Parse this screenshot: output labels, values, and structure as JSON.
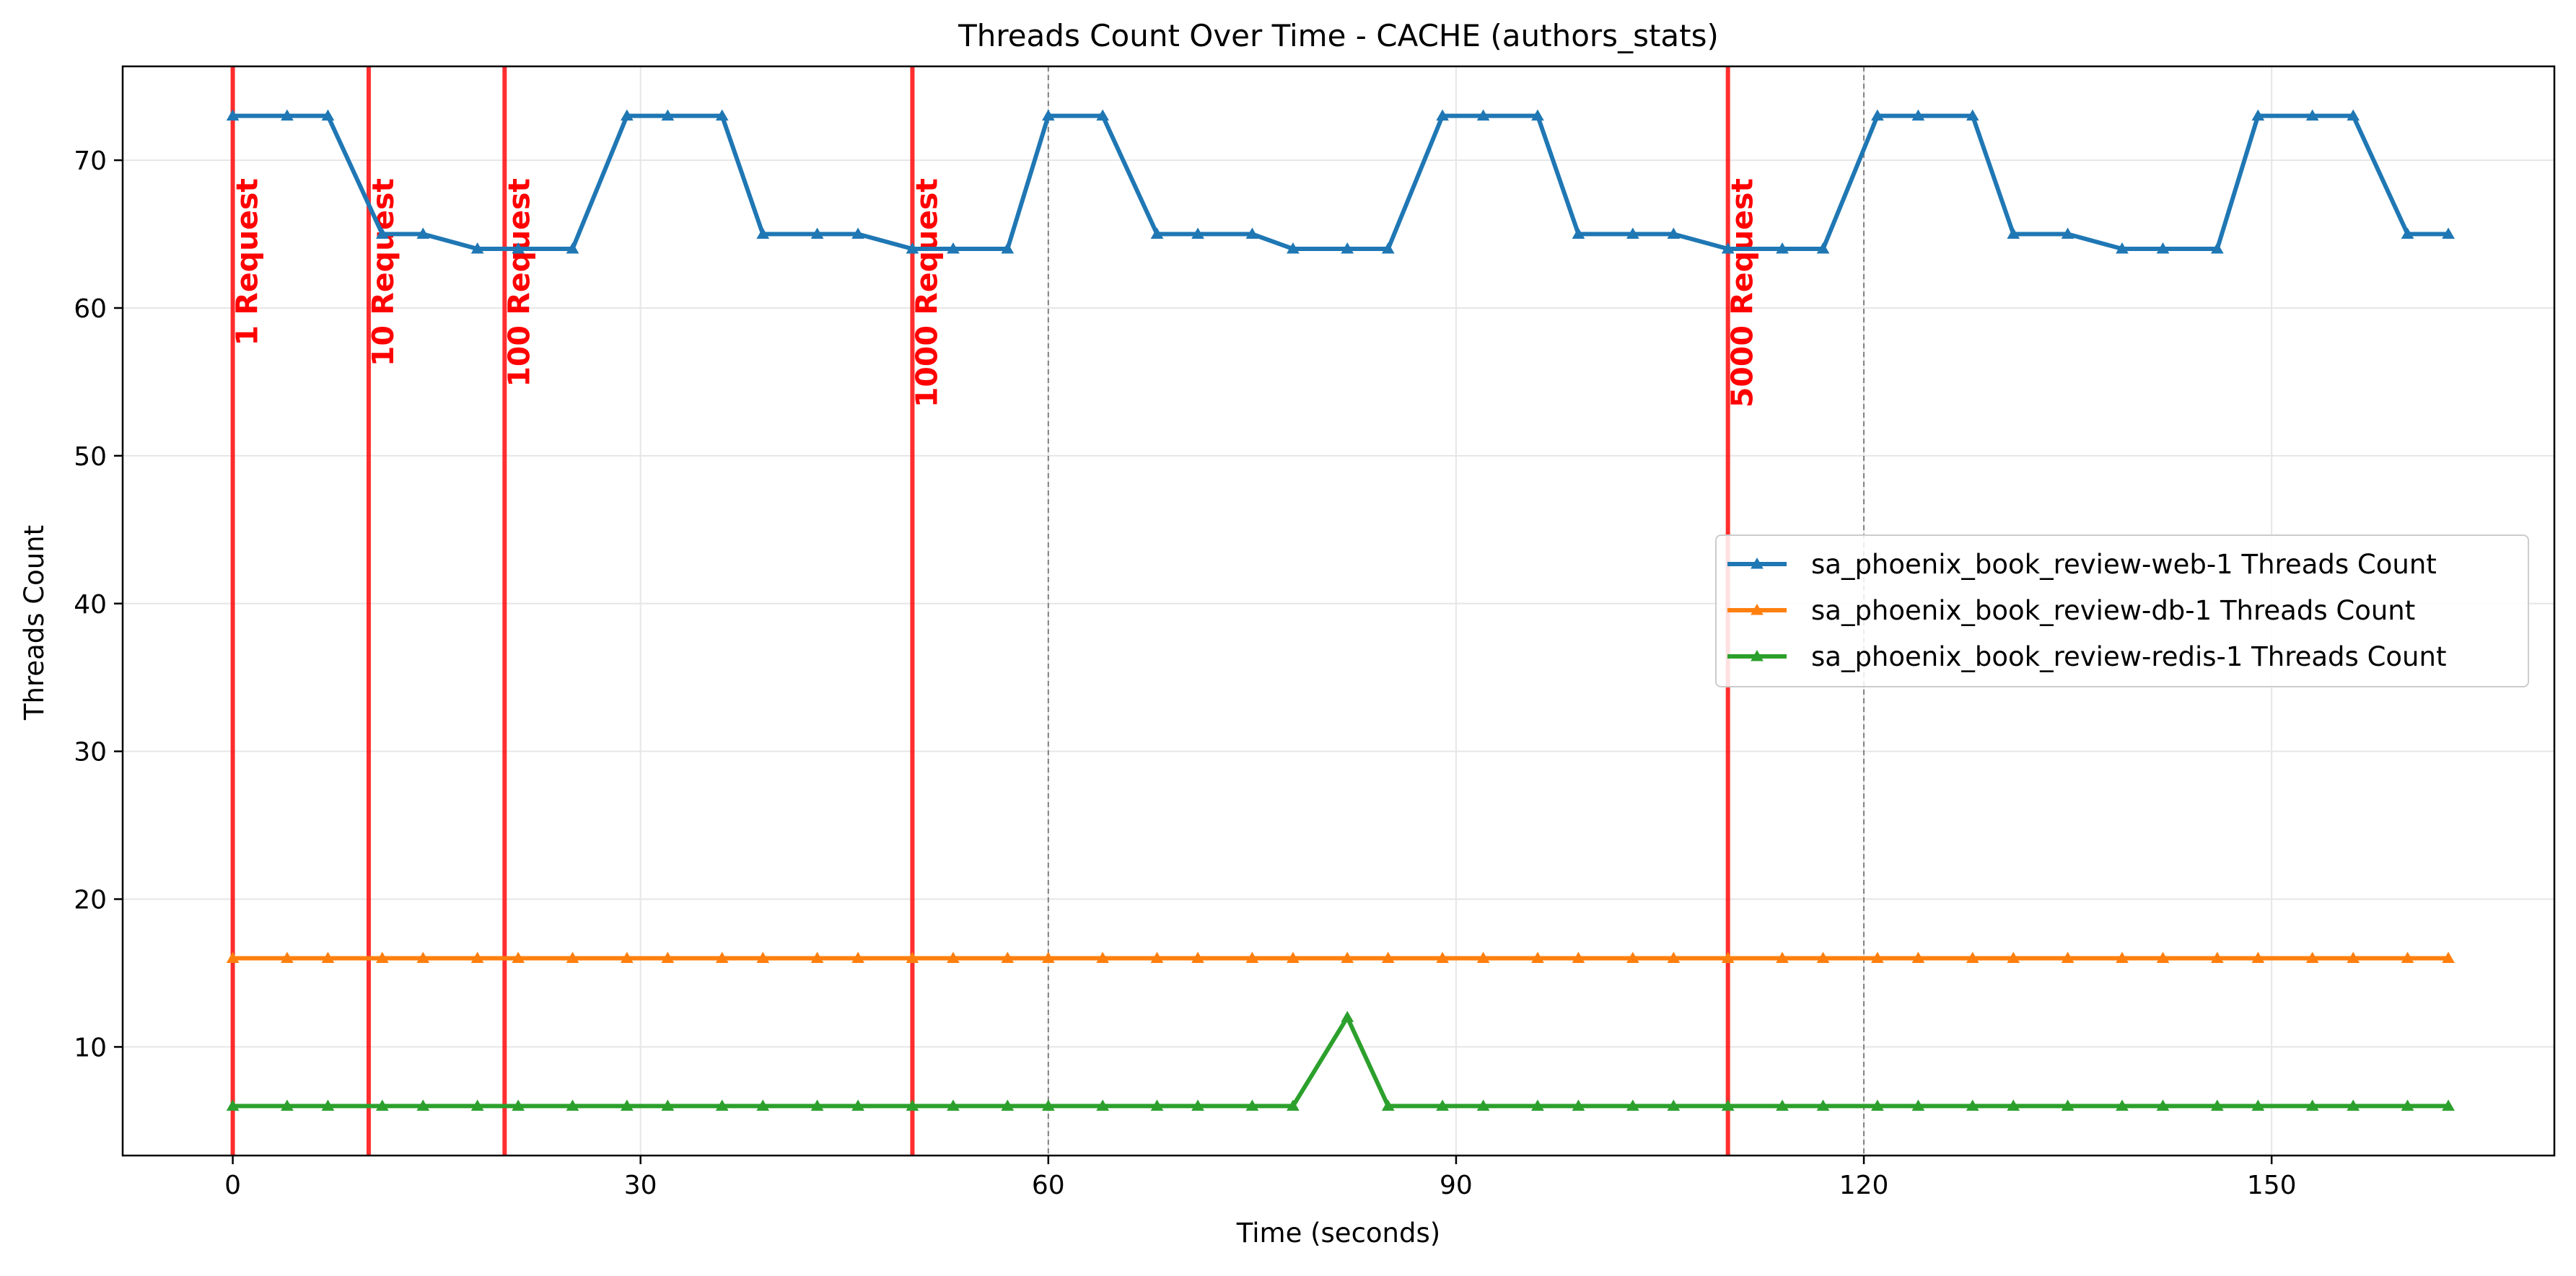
{
  "chart_data": {
    "type": "line",
    "title": "Threads Count Over Time - CACHE (authors_stats)",
    "xlabel": "Time (seconds)",
    "ylabel": "Threads Count",
    "xlim": [
      -8.1,
      170.8
    ],
    "ylim": [
      2.65,
      76.35
    ],
    "xticks": [
      0,
      30,
      60,
      90,
      120,
      150
    ],
    "yticks": [
      10,
      20,
      30,
      40,
      50,
      60,
      70
    ],
    "grid": true,
    "legend_position": "center-right",
    "markers": "triangle",
    "x": [
      0,
      4,
      7,
      11,
      14,
      18,
      21,
      25,
      29,
      32,
      36,
      39,
      43,
      46,
      50,
      53,
      57,
      60,
      64,
      68,
      71,
      75,
      78,
      82,
      85,
      89,
      92,
      96,
      99,
      103,
      106,
      110,
      114,
      117,
      121,
      124,
      128,
      131,
      135,
      139,
      142,
      146,
      149,
      153,
      156,
      160,
      163
    ],
    "series": [
      {
        "name": "sa_phoenix_book_review-web-1 Threads Count",
        "color": "#1f77b4",
        "values": [
          73,
          73,
          73,
          65,
          65,
          64,
          64,
          64,
          73,
          73,
          73,
          65,
          65,
          65,
          64,
          64,
          64,
          73,
          73,
          65,
          65,
          65,
          64,
          64,
          64,
          73,
          73,
          73,
          65,
          65,
          65,
          64,
          64,
          64,
          73,
          73,
          73,
          65,
          65,
          64,
          64,
          64,
          73,
          73,
          73,
          65,
          65
        ]
      },
      {
        "name": "sa_phoenix_book_review-db-1 Threads Count",
        "color": "#ff7f0e",
        "values": [
          16,
          16,
          16,
          16,
          16,
          16,
          16,
          16,
          16,
          16,
          16,
          16,
          16,
          16,
          16,
          16,
          16,
          16,
          16,
          16,
          16,
          16,
          16,
          16,
          16,
          16,
          16,
          16,
          16,
          16,
          16,
          16,
          16,
          16,
          16,
          16,
          16,
          16,
          16,
          16,
          16,
          16,
          16,
          16,
          16,
          16,
          16
        ]
      },
      {
        "name": "sa_phoenix_book_review-redis-1 Threads Count",
        "color": "#2ca02c",
        "values": [
          6,
          6,
          6,
          6,
          6,
          6,
          6,
          6,
          6,
          6,
          6,
          6,
          6,
          6,
          6,
          6,
          6,
          6,
          6,
          6,
          6,
          6,
          6,
          12,
          6,
          6,
          6,
          6,
          6,
          6,
          6,
          6,
          6,
          6,
          6,
          6,
          6,
          6,
          6,
          6,
          6,
          6,
          6,
          6,
          6,
          6,
          6
        ]
      }
    ],
    "annotations": [
      {
        "x": 0,
        "label": "1 Request",
        "color": "#ff0000"
      },
      {
        "x": 10,
        "label": "10 Request",
        "color": "#ff0000"
      },
      {
        "x": 20,
        "label": "100 Request",
        "color": "#ff0000"
      },
      {
        "x": 50,
        "label": "1000 Request",
        "color": "#ff0000"
      },
      {
        "x": 110,
        "label": "5000 Request",
        "color": "#ff0000"
      }
    ],
    "reference_lines": [
      {
        "x": 60,
        "style": "dashed",
        "color": "#808080"
      },
      {
        "x": 120,
        "style": "dashed",
        "color": "#808080"
      }
    ]
  }
}
